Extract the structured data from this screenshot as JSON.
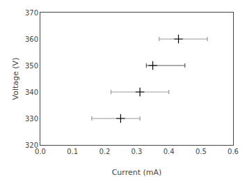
{
  "chart_data": {
    "type": "scatter",
    "x": [
      0.25,
      0.31,
      0.35,
      0.43
    ],
    "values": [
      330,
      340,
      350,
      360
    ],
    "xerr": {
      "minus": [
        0.09,
        0.09,
        0.02,
        0.06
      ],
      "plus": [
        0.06,
        0.09,
        0.1,
        0.09
      ],
      "colors": [
        "#999999",
        "#999999",
        "#555555",
        "#999999"
      ]
    },
    "color": "#000000",
    "marker": "plus",
    "xlabel": "Current (mA)",
    "ylabel": "Voltage (V)",
    "xlim": [
      0,
      0.6
    ],
    "ylim": [
      320,
      370
    ],
    "xticks": [
      {
        "value": 0,
        "label": "0.0"
      },
      0.1,
      0.2,
      0.3,
      0.4,
      0.5,
      0.6
    ],
    "yticks": [
      320,
      330,
      340,
      350,
      360,
      370
    ],
    "grid": false
  }
}
